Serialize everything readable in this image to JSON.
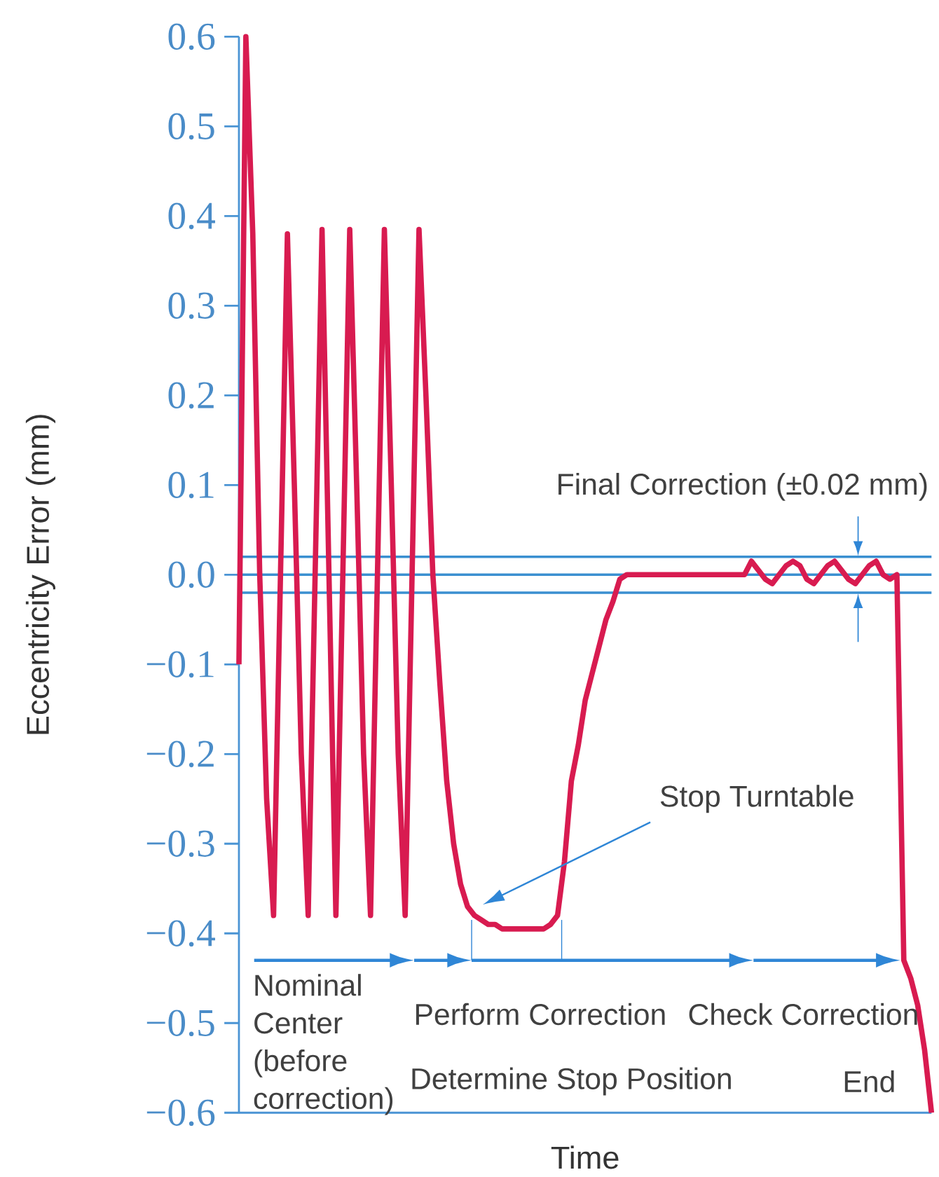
{
  "chart_data": {
    "type": "line",
    "xlabel": "Time",
    "ylabel": "Eccentricity Error (mm)",
    "categories": [
      null,
      null,
      null,
      null,
      null,
      null,
      null,
      null,
      null,
      null,
      null,
      null,
      null,
      null,
      null,
      null,
      null,
      null,
      null,
      null,
      null,
      null,
      null,
      null,
      null,
      null,
      null,
      null,
      null,
      null,
      null,
      null,
      null,
      null,
      null,
      null,
      null,
      null,
      null,
      null,
      null,
      null,
      null,
      null,
      null,
      null,
      null,
      null,
      null,
      null,
      null,
      null,
      null,
      null,
      null,
      null,
      null,
      null,
      null,
      null,
      null,
      null,
      null,
      null,
      null,
      null,
      null,
      null,
      null,
      null,
      null,
      null,
      null,
      null,
      null,
      null,
      null,
      null,
      null,
      null,
      null,
      null,
      null,
      null,
      null,
      null,
      null,
      null,
      null,
      null,
      null,
      null,
      null,
      null,
      null,
      null,
      null,
      null,
      null,
      null,
      null
    ],
    "series": [
      {
        "color": "#d81b50",
        "values": [
          -0.1,
          0.6,
          0.38,
          0.0,
          -0.25,
          -0.38,
          0.0,
          0.38,
          0.1,
          -0.2,
          -0.38,
          0.0,
          0.385,
          0.0,
          -0.38,
          0.0,
          0.385,
          0.1,
          -0.2,
          -0.38,
          0.0,
          0.385,
          0.1,
          -0.2,
          -0.38,
          0.0,
          0.385,
          0.2,
          0.0,
          -0.12,
          -0.23,
          -0.3,
          -0.345,
          -0.37,
          -0.38,
          -0.385,
          -0.39,
          -0.39,
          -0.395,
          -0.395,
          -0.395,
          -0.395,
          -0.395,
          -0.395,
          -0.395,
          -0.39,
          -0.38,
          -0.32,
          -0.23,
          -0.19,
          -0.14,
          -0.11,
          -0.08,
          -0.05,
          -0.03,
          -0.005,
          0.0,
          0.0,
          0.0,
          0.0,
          0.0,
          0.0,
          0.0,
          0.0,
          0.0,
          0.0,
          0.0,
          0.0,
          0.0,
          0.0,
          0.0,
          0.0,
          0.0,
          0.0,
          0.015,
          0.005,
          -0.005,
          -0.01,
          0.0,
          0.01,
          0.015,
          0.01,
          -0.005,
          -0.01,
          0.0,
          0.01,
          0.015,
          0.005,
          -0.005,
          -0.01,
          0.0,
          0.01,
          0.015,
          0.0,
          -0.005,
          0.0,
          -0.43,
          -0.45,
          -0.48,
          -0.53,
          -0.6
        ]
      }
    ],
    "ylim": [
      -0.6,
      0.6
    ],
    "yticks": [
      {
        "value": 0.6,
        "label": "0.6"
      },
      {
        "value": 0.5,
        "label": "0.5"
      },
      {
        "value": 0.4,
        "label": "0.4"
      },
      {
        "value": 0.3,
        "label": "0.3"
      },
      {
        "value": 0.2,
        "label": "0.2"
      },
      {
        "value": 0.1,
        "label": "0.1"
      },
      {
        "value": 0,
        "label": "0.0"
      },
      {
        "value": -0.1,
        "label": "−0.1"
      },
      {
        "value": -0.2,
        "label": "−0.2"
      },
      {
        "value": -0.3,
        "label": "−0.3"
      },
      {
        "value": -0.4,
        "label": "−0.4"
      },
      {
        "value": -0.5,
        "label": "−0.5"
      },
      {
        "value": -0.6,
        "label": "−0.6"
      }
    ],
    "tick_labels": "y",
    "ref_lines": [
      {
        "axis": "y",
        "value": 0.02,
        "color": "#3a8fd0"
      },
      {
        "axis": "y",
        "value": 0,
        "color": "#3a8fd0"
      },
      {
        "axis": "y",
        "value": -0.02,
        "color": "#3a8fd0"
      }
    ],
    "annotations": [
      "Final Correction (±0.02 mm)",
      "Stop Turntable",
      "Nominal Center (before correction)",
      "Perform Correction",
      "Check Correction",
      "Determine Stop Position",
      "End"
    ]
  }
}
